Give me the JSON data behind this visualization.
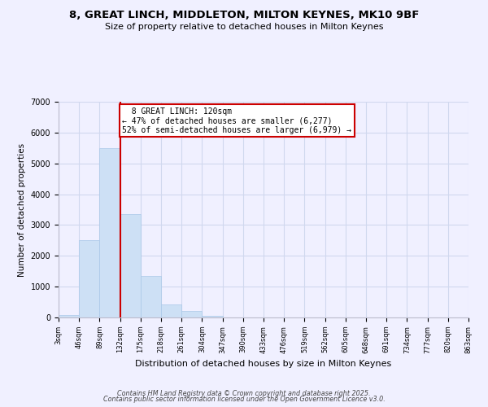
{
  "title": "8, GREAT LINCH, MIDDLETON, MILTON KEYNES, MK10 9BF",
  "subtitle": "Size of property relative to detached houses in Milton Keynes",
  "xlabel": "Distribution of detached houses by size in Milton Keynes",
  "ylabel": "Number of detached properties",
  "bar_values": [
    75,
    2500,
    5500,
    3350,
    1350,
    430,
    200,
    60,
    5,
    0,
    0,
    0,
    0,
    0,
    0,
    0,
    0,
    0,
    0,
    0
  ],
  "bin_labels": [
    "3sqm",
    "46sqm",
    "89sqm",
    "132sqm",
    "175sqm",
    "218sqm",
    "261sqm",
    "304sqm",
    "347sqm",
    "390sqm",
    "433sqm",
    "476sqm",
    "519sqm",
    "562sqm",
    "605sqm",
    "648sqm",
    "691sqm",
    "734sqm",
    "777sqm",
    "820sqm",
    "863sqm"
  ],
  "bar_color": "#cde0f5",
  "bar_edge_color": "#aac8e8",
  "vline_x": 3,
  "annotation_title": "8 GREAT LINCH: 120sqm",
  "annotation_line1": "← 47% of detached houses are smaller (6,277)",
  "annotation_line2": "52% of semi-detached houses are larger (6,979) →",
  "annotation_box_color": "#ffffff",
  "annotation_box_edge_color": "#cc0000",
  "vline_color": "#cc0000",
  "ylim": [
    0,
    7000
  ],
  "yticks": [
    0,
    1000,
    2000,
    3000,
    4000,
    5000,
    6000,
    7000
  ],
  "footer_line1": "Contains HM Land Registry data © Crown copyright and database right 2025.",
  "footer_line2": "Contains public sector information licensed under the Open Government Licence v3.0.",
  "background_color": "#f0f0ff",
  "grid_color": "#d0d8ee"
}
